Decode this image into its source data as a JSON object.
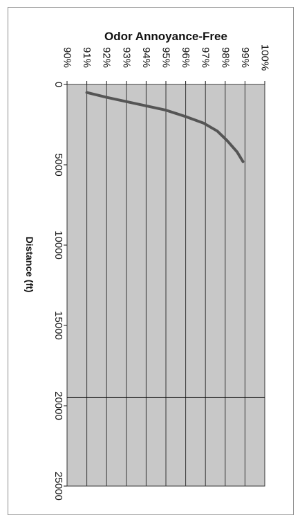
{
  "chart_data": {
    "type": "line",
    "title": "Odor Annoyance-Free",
    "xlabel": "Distance (ft)",
    "ylabel": "",
    "orientation": "rotated-90-clockwise",
    "x_ticks": [
      "0",
      "5000",
      "10000",
      "15000",
      "20000",
      "25000"
    ],
    "xlim": [
      0,
      25000
    ],
    "y_ticks": [
      "90%",
      "91%",
      "92%",
      "93%",
      "94%",
      "95%",
      "96%",
      "97%",
      "98%",
      "99%",
      "100%"
    ],
    "ylim": [
      90,
      100
    ],
    "grid": true,
    "reference_line_x": 19500,
    "series": [
      {
        "color": "#555555",
        "x": [
          500,
          800,
          1200,
          1600,
          2000,
          2400,
          2900,
          3500,
          4200,
          4800
        ],
        "y": [
          91.0,
          92.0,
          93.5,
          95.0,
          96.0,
          96.9,
          97.6,
          98.1,
          98.6,
          98.9
        ]
      }
    ],
    "plot_background": "#c8c8c8"
  }
}
